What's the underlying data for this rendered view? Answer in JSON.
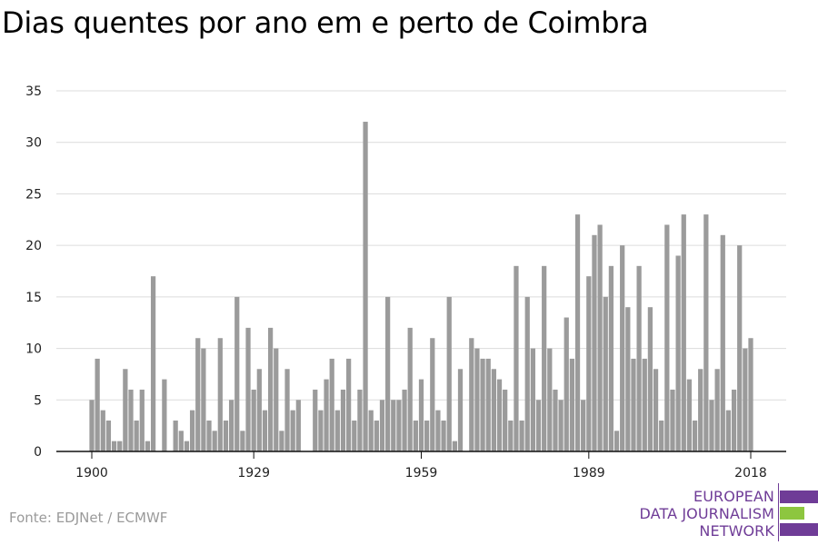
{
  "title": "Dias quentes por ano em e perto de Coimbra",
  "source": "Fonte: EDJNet / ECMWF",
  "logo": {
    "lines": [
      "EUROPEAN",
      "DATA JOURNALISM",
      "NETWORK"
    ],
    "colors": {
      "purple": "#6f3c97",
      "green": "#8dc63f"
    }
  },
  "chart_data": {
    "type": "bar",
    "title": "Dias quentes por ano em e perto de Coimbra",
    "xlabel": "",
    "ylabel": "",
    "x_range": [
      1900,
      2018
    ],
    "x_ticks": [
      1900,
      1929,
      1959,
      1989,
      2018
    ],
    "y_ticks": [
      0,
      5,
      10,
      15,
      20,
      25,
      30,
      35
    ],
    "ylim": [
      0,
      35
    ],
    "grid": true,
    "bar_color": "#9b9b9b",
    "years": [
      1900,
      1901,
      1902,
      1903,
      1904,
      1905,
      1906,
      1907,
      1908,
      1909,
      1910,
      1911,
      1912,
      1913,
      1914,
      1915,
      1916,
      1917,
      1918,
      1919,
      1920,
      1921,
      1922,
      1923,
      1924,
      1925,
      1926,
      1927,
      1928,
      1929,
      1930,
      1931,
      1932,
      1933,
      1934,
      1935,
      1936,
      1937,
      1938,
      1939,
      1940,
      1941,
      1942,
      1943,
      1944,
      1945,
      1946,
      1947,
      1948,
      1949,
      1950,
      1951,
      1952,
      1953,
      1954,
      1955,
      1956,
      1957,
      1958,
      1959,
      1960,
      1961,
      1962,
      1963,
      1964,
      1965,
      1966,
      1967,
      1968,
      1969,
      1970,
      1971,
      1972,
      1973,
      1974,
      1975,
      1976,
      1977,
      1978,
      1979,
      1980,
      1981,
      1982,
      1983,
      1984,
      1985,
      1986,
      1987,
      1988,
      1989,
      1990,
      1991,
      1992,
      1993,
      1994,
      1995,
      1996,
      1997,
      1998,
      1999,
      2000,
      2001,
      2002,
      2003,
      2004,
      2005,
      2006,
      2007,
      2008,
      2009,
      2010,
      2011,
      2012,
      2013,
      2014,
      2015,
      2016,
      2017,
      2018
    ],
    "values": [
      5,
      9,
      4,
      3,
      1,
      1,
      8,
      6,
      3,
      6,
      1,
      17,
      0,
      7,
      0,
      3,
      2,
      1,
      4,
      11,
      10,
      3,
      2,
      11,
      3,
      5,
      15,
      2,
      12,
      6,
      8,
      4,
      12,
      10,
      2,
      8,
      4,
      5,
      0,
      0,
      6,
      4,
      7,
      9,
      4,
      6,
      9,
      3,
      6,
      32,
      4,
      3,
      5,
      15,
      5,
      5,
      6,
      12,
      3,
      7,
      3,
      11,
      4,
      3,
      15,
      1,
      8,
      0,
      11,
      10,
      9,
      9,
      8,
      7,
      6,
      3,
      18,
      3,
      15,
      10,
      5,
      18,
      10,
      6,
      5,
      13,
      9,
      23,
      5,
      17,
      21,
      22,
      15,
      18,
      2,
      20,
      14,
      9,
      18,
      9,
      14,
      8,
      3,
      22,
      6,
      19,
      23,
      7,
      3,
      8,
      23,
      5,
      8,
      21,
      4,
      6,
      20,
      10,
      11
    ]
  }
}
